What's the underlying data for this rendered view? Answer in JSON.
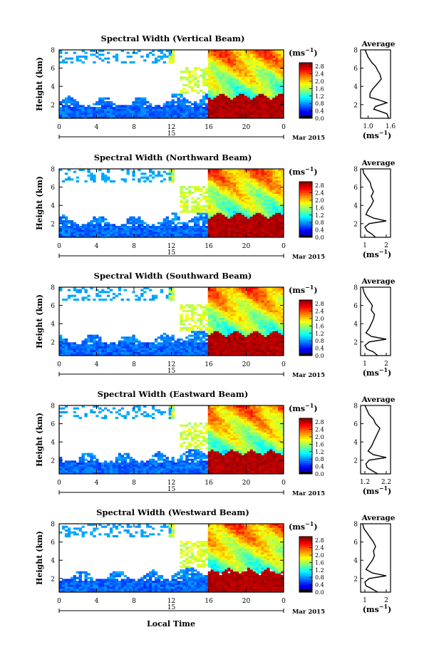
{
  "figure": {
    "bottom_xlabel": "Local Time",
    "date_label": "Mar 2015",
    "date_day": "15",
    "ylabel": "Height (km)",
    "colorbar_unit": "(ms",
    "colorbar_unit_sup": "−1",
    "colorbar_unit_close": ")",
    "avg_title": "Average",
    "avg_unit": "(ms",
    "avg_unit_sup": "−1",
    "avg_unit_close": ")"
  },
  "chart_data": [
    {
      "type": "heatmap",
      "title": "Spectral Width (Vertical Beam)",
      "ylabel": "Height (km)",
      "xlabel": "Local Time",
      "x_ticks": [
        "0",
        "4",
        "8",
        "12",
        "16",
        "20",
        "0"
      ],
      "x_range_hours": [
        0,
        24
      ],
      "y_ticks": [
        "2",
        "4",
        "6",
        "8"
      ],
      "y_range_km": [
        0.5,
        8
      ],
      "colorbar_ticks": [
        "0.0",
        "0.4",
        "0.8",
        "1.2",
        "1.6",
        "2.0",
        "2.4",
        "2.8"
      ],
      "colorbar_range": [
        0,
        3
      ],
      "average": {
        "title": "Average",
        "xlim": [
          0.8,
          1.6
        ],
        "x_ticks": [
          "1.0",
          "1.6"
        ],
        "profile": [
          [
            1.55,
            0.5
          ],
          [
            1.5,
            1.0
          ],
          [
            1.3,
            1.3
          ],
          [
            1.15,
            1.5
          ],
          [
            1.2,
            1.8
          ],
          [
            1.35,
            2.0
          ],
          [
            1.5,
            2.2
          ],
          [
            1.3,
            2.5
          ],
          [
            1.05,
            2.8
          ],
          [
            1.05,
            3.2
          ],
          [
            1.12,
            3.7
          ],
          [
            1.25,
            4.3
          ],
          [
            1.35,
            4.8
          ],
          [
            1.32,
            5.3
          ],
          [
            1.25,
            5.8
          ],
          [
            1.2,
            6.2
          ],
          [
            1.1,
            6.6
          ],
          [
            1.0,
            7.2
          ],
          [
            0.95,
            7.7
          ],
          [
            0.92,
            8.0
          ]
        ]
      }
    },
    {
      "type": "heatmap",
      "title": "Spectral Width (Northward Beam)",
      "ylabel": "Height (km)",
      "xlabel": "Local Time",
      "x_ticks": [
        "0",
        "4",
        "8",
        "12",
        "16",
        "20",
        "0"
      ],
      "x_range_hours": [
        0,
        24
      ],
      "y_ticks": [
        "2",
        "4",
        "6",
        "8"
      ],
      "y_range_km": [
        0.5,
        8
      ],
      "colorbar_ticks": [
        "0.0",
        "0.4",
        "0.8",
        "1.2",
        "1.6",
        "2.0",
        "2.4",
        "2.8"
      ],
      "colorbar_range": [
        0,
        3
      ],
      "average": {
        "title": "Average",
        "xlim": [
          0.8,
          2.2
        ],
        "x_ticks": [
          "1",
          "2"
        ],
        "profile": [
          [
            1.5,
            0.5
          ],
          [
            1.3,
            0.9
          ],
          [
            1.1,
            1.2
          ],
          [
            1.0,
            1.6
          ],
          [
            1.2,
            2.0
          ],
          [
            2.0,
            2.3
          ],
          [
            1.4,
            2.6
          ],
          [
            1.05,
            3.0
          ],
          [
            1.15,
            3.5
          ],
          [
            1.3,
            4.0
          ],
          [
            1.4,
            4.5
          ],
          [
            1.3,
            5.0
          ],
          [
            1.4,
            5.5
          ],
          [
            1.3,
            6.0
          ],
          [
            1.25,
            6.5
          ],
          [
            1.1,
            7.0
          ],
          [
            0.95,
            7.5
          ],
          [
            0.9,
            8.0
          ]
        ]
      }
    },
    {
      "type": "heatmap",
      "title": "Spectral Width (Southward Beam)",
      "ylabel": "Height (km)",
      "xlabel": "Local Time",
      "x_ticks": [
        "0",
        "4",
        "8",
        "12",
        "16",
        "20",
        "0"
      ],
      "x_range_hours": [
        0,
        24
      ],
      "y_ticks": [
        "2",
        "4",
        "6",
        "8"
      ],
      "y_range_km": [
        0.5,
        8
      ],
      "colorbar_ticks": [
        "0.0",
        "0.4",
        "0.8",
        "1.2",
        "1.6",
        "2.0",
        "2.4",
        "2.8"
      ],
      "colorbar_range": [
        0,
        3
      ],
      "average": {
        "title": "Average",
        "xlim": [
          0.8,
          2.2
        ],
        "x_ticks": [
          "1",
          "2"
        ],
        "profile": [
          [
            1.6,
            0.5
          ],
          [
            1.4,
            0.9
          ],
          [
            1.1,
            1.2
          ],
          [
            1.0,
            1.6
          ],
          [
            1.2,
            2.0
          ],
          [
            2.0,
            2.3
          ],
          [
            1.3,
            2.6
          ],
          [
            1.05,
            3.0
          ],
          [
            1.2,
            3.5
          ],
          [
            1.3,
            4.0
          ],
          [
            1.4,
            4.5
          ],
          [
            1.45,
            5.0
          ],
          [
            1.3,
            5.5
          ],
          [
            1.35,
            6.0
          ],
          [
            1.2,
            6.5
          ],
          [
            1.05,
            7.0
          ],
          [
            0.95,
            7.5
          ],
          [
            0.9,
            8.0
          ]
        ]
      }
    },
    {
      "type": "heatmap",
      "title": "Spectral Width (Eastward Beam)",
      "ylabel": "Height (km)",
      "xlabel": "Local Time",
      "x_ticks": [
        "0",
        "4",
        "8",
        "12",
        "16",
        "20",
        "0"
      ],
      "x_range_hours": [
        0,
        24
      ],
      "y_ticks": [
        "2",
        "4",
        "6",
        "8"
      ],
      "y_range_km": [
        0.5,
        8
      ],
      "colorbar_ticks": [
        "0.0",
        "0.4",
        "0.8",
        "1.2",
        "1.6",
        "2.0",
        "2.4",
        "2.8"
      ],
      "colorbar_range": [
        0,
        3
      ],
      "average": {
        "title": "Average",
        "xlim": [
          1.0,
          2.4
        ],
        "x_ticks": [
          "1.2",
          "2.2"
        ],
        "profile": [
          [
            1.8,
            0.5
          ],
          [
            1.5,
            0.9
          ],
          [
            1.3,
            1.2
          ],
          [
            1.25,
            1.6
          ],
          [
            1.4,
            2.0
          ],
          [
            2.2,
            2.3
          ],
          [
            1.6,
            2.6
          ],
          [
            1.35,
            3.0
          ],
          [
            1.5,
            3.5
          ],
          [
            1.6,
            4.0
          ],
          [
            1.7,
            4.5
          ],
          [
            1.8,
            5.0
          ],
          [
            1.9,
            5.5
          ],
          [
            1.7,
            6.0
          ],
          [
            1.6,
            6.5
          ],
          [
            1.4,
            7.0
          ],
          [
            1.3,
            7.5
          ],
          [
            1.2,
            8.0
          ]
        ]
      }
    },
    {
      "type": "heatmap",
      "title": "Spectral Width (Westward Beam)",
      "ylabel": "Height (km)",
      "xlabel": "Local Time",
      "x_ticks": [
        "0",
        "4",
        "8",
        "12",
        "16",
        "20",
        "0"
      ],
      "x_range_hours": [
        0,
        24
      ],
      "y_ticks": [
        "2",
        "4",
        "6",
        "8"
      ],
      "y_range_km": [
        0.5,
        8
      ],
      "colorbar_ticks": [
        "0.0",
        "0.4",
        "0.8",
        "1.2",
        "1.6",
        "2.0",
        "2.4",
        "2.8"
      ],
      "colorbar_range": [
        0,
        3
      ],
      "average": {
        "title": "Average",
        "xlim": [
          0.8,
          2.2
        ],
        "x_ticks": [
          "1",
          "2"
        ],
        "profile": [
          [
            1.6,
            0.5
          ],
          [
            1.3,
            0.9
          ],
          [
            1.05,
            1.2
          ],
          [
            1.0,
            1.6
          ],
          [
            1.2,
            2.0
          ],
          [
            2.0,
            2.3
          ],
          [
            1.35,
            2.6
          ],
          [
            1.05,
            3.0
          ],
          [
            1.2,
            3.5
          ],
          [
            1.35,
            4.0
          ],
          [
            1.45,
            4.5
          ],
          [
            1.4,
            5.0
          ],
          [
            1.5,
            5.5
          ],
          [
            1.4,
            6.0
          ],
          [
            1.25,
            6.5
          ],
          [
            1.1,
            7.0
          ],
          [
            0.95,
            7.5
          ],
          [
            0.9,
            8.0
          ]
        ]
      }
    }
  ]
}
